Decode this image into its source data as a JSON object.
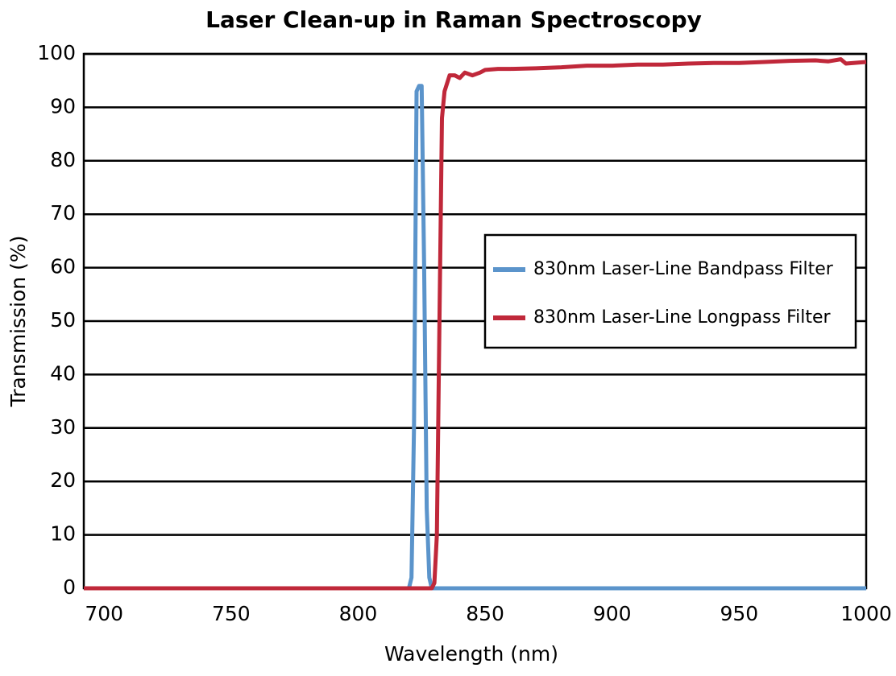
{
  "chart_data": {
    "type": "line",
    "title": "Laser Clean-up in Raman Spectroscopy",
    "x_label": "Wavelength (nm)",
    "y_label": "Transmission (%)",
    "xlim": [
      692,
      1000
    ],
    "xticks": [
      700,
      750,
      800,
      850,
      900,
      950,
      1000
    ],
    "ylim": [
      0,
      100
    ],
    "yticks": [
      0,
      10,
      20,
      30,
      40,
      50,
      60,
      70,
      80,
      90,
      100
    ],
    "grid": true,
    "legend": "right",
    "series": [
      {
        "name": "830nm Laser-Line Bandpass Filter",
        "color": "#5b94cb",
        "x": [
          692,
          820,
          821,
          822,
          823,
          824,
          825,
          826,
          827,
          828,
          829,
          1000
        ],
        "values": [
          0,
          0,
          2,
          30,
          93,
          94,
          94,
          60,
          15,
          2,
          0,
          0
        ]
      },
      {
        "name": "830nm Laser-Line Longpass Filter",
        "color": "#c0283a",
        "x": [
          692,
          829,
          830,
          831,
          832,
          833,
          834,
          836,
          838,
          840,
          842,
          845,
          848,
          850,
          855,
          860,
          870,
          880,
          890,
          900,
          910,
          920,
          930,
          940,
          950,
          960,
          970,
          980,
          985,
          990,
          992,
          1000
        ],
        "values": [
          0,
          0,
          1,
          10,
          50,
          88,
          93,
          96,
          96,
          95.5,
          96.5,
          96,
          96.5,
          97,
          97.2,
          97.2,
          97.3,
          97.5,
          97.8,
          97.8,
          98,
          98,
          98.2,
          98.3,
          98.3,
          98.5,
          98.7,
          98.8,
          98.6,
          99,
          98.2,
          98.5
        ]
      }
    ]
  }
}
